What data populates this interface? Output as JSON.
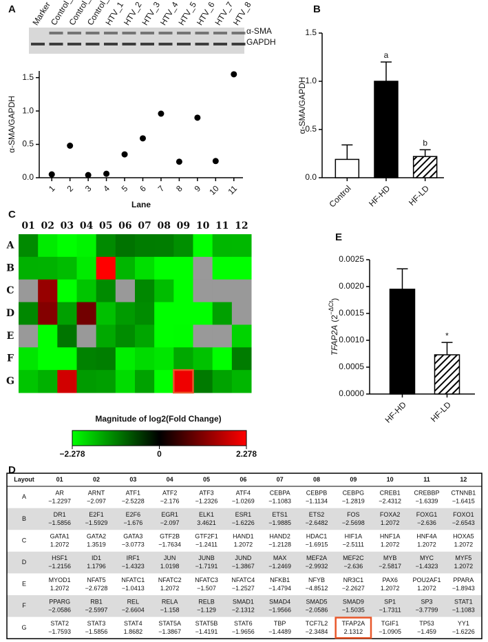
{
  "panel_labels": [
    "A",
    "B",
    "C",
    "D",
    "E"
  ],
  "blot": {
    "lanes": [
      "Marker",
      "Control_1",
      "Control_2",
      "Control_3",
      "HTV_1",
      "HTV_2",
      "HTV_3",
      "HTV_4",
      "HTV_5",
      "HTV_6",
      "HTV_7",
      "HTV_8"
    ],
    "lane_colors": [
      "#000000",
      "#000000",
      "#000000",
      "#000000",
      "#e00000",
      "#e00000",
      "#000000",
      "#000000",
      "#e00000",
      "#000000",
      "#e00000",
      "#000000"
    ],
    "bands": [
      "α-SMA",
      "GAPDH"
    ]
  },
  "chart_data": [
    {
      "type": "scatter",
      "ylabel": "α-SMA/GAPDH",
      "xlabel": "Lane",
      "color": "#000000",
      "x": [
        1,
        2,
        3,
        4,
        5,
        6,
        7,
        8,
        9,
        10,
        11
      ],
      "values": [
        0.05,
        0.48,
        0.04,
        0.06,
        0.35,
        0.59,
        0.96,
        0.24,
        0.9,
        0.25,
        1.55
      ],
      "xlim": [
        0.5,
        11.5
      ],
      "xticks": [
        1,
        2,
        3,
        4,
        5,
        6,
        7,
        8,
        9,
        10,
        11
      ],
      "ylim": [
        0,
        1.6
      ],
      "yticks": [
        {
          "value": 0,
          "label": "0.0"
        },
        {
          "value": 0.5,
          "label": "0.5"
        },
        {
          "value": 1,
          "label": "1.0"
        },
        {
          "value": 1.5,
          "label": "1.5"
        }
      ]
    },
    {
      "type": "bar",
      "ylabel": "α-SMA/GAPDH",
      "categories": [
        "Control",
        "HF-HD",
        "HF-LD"
      ],
      "values": [
        0.19,
        1.0,
        0.22
      ],
      "errors": [
        0.15,
        0.2,
        0.07
      ],
      "fills": [
        "#ffffff",
        "#000000",
        "hatch"
      ],
      "annotations": [
        {
          "category": "HF-HD",
          "text": "a"
        },
        {
          "category": "HF-LD",
          "text": "b"
        }
      ],
      "ylim": [
        0,
        1.5
      ],
      "yticks": [
        {
          "value": 0,
          "label": "0.0"
        },
        {
          "value": 0.5,
          "label": "0.5"
        },
        {
          "value": 1,
          "label": "1.0"
        },
        {
          "value": 1.5,
          "label": "1.5"
        }
      ]
    },
    {
      "type": "heatmap",
      "title": "Magnitude of log2(Fold Change)",
      "columns": [
        "01",
        "02",
        "03",
        "04",
        "05",
        "06",
        "07",
        "08",
        "09",
        "10",
        "11",
        "12"
      ],
      "rows": [
        "A",
        "B",
        "C",
        "D",
        "E",
        "F",
        "G"
      ],
      "colors": {
        "low": "#00ff00",
        "mid": "#000000",
        "high": "#ff0000",
        "na": "#999999"
      },
      "na_cells": [
        [
          1,
          9
        ],
        [
          2,
          0
        ],
        [
          2,
          5
        ],
        [
          2,
          9
        ],
        [
          2,
          10
        ],
        [
          2,
          11
        ],
        [
          3,
          11
        ],
        [
          4,
          0
        ],
        [
          4,
          3
        ],
        [
          4,
          9
        ],
        [
          4,
          10
        ]
      ],
      "highlight": {
        "row": 6,
        "col": 8,
        "color": "#e8572a"
      },
      "colorbar_ticks": [
        {
          "value": -2.278,
          "label": "−2.278"
        },
        0,
        2.278
      ]
    },
    {
      "type": "bar",
      "ylabel_gene": "TFAP2A",
      "ylabel": "(2",
      "ylabel_sup": "−ΔCt",
      "ylabel_end": ")",
      "categories": [
        "HF-HD",
        "HF-LD"
      ],
      "values": [
        0.00195,
        0.00073
      ],
      "errors": [
        0.00038,
        0.00023
      ],
      "fills": [
        "#000000",
        "hatch"
      ],
      "annotations": [
        {
          "category": "HF-LD",
          "text": "*"
        }
      ],
      "ylim": [
        0,
        0.0025
      ],
      "yticks": [
        {
          "value": 0,
          "label": "0.0000"
        },
        {
          "value": 0.0005,
          "label": "0.0005"
        },
        {
          "value": 0.001,
          "label": "0.0010"
        },
        {
          "value": 0.0015,
          "label": "0.0015"
        },
        {
          "value": 0.002,
          "label": "0.0020"
        },
        {
          "value": 0.0025,
          "label": "0.0025"
        }
      ]
    }
  ],
  "table": {
    "columns": [
      "Layout",
      "01",
      "02",
      "03",
      "04",
      "05",
      "06",
      "07",
      "08",
      "09",
      "10",
      "11",
      "12"
    ],
    "highlight": {
      "row": 6,
      "col": 8,
      "color": "#e8572a"
    },
    "rows": [
      {
        "label": "A",
        "cells": [
          [
            "AR",
            "−1.2297"
          ],
          [
            "ARNT",
            "−2.097"
          ],
          [
            "ATF1",
            "−2.5228"
          ],
          [
            "ATF2",
            "−2.176"
          ],
          [
            "ATF3",
            "−1.2326"
          ],
          [
            "ATF4",
            "−1.0269"
          ],
          [
            "CEBPA",
            "−1.1083"
          ],
          [
            "CEBPB",
            "−1.1134"
          ],
          [
            "CEBPG",
            "−1.2819"
          ],
          [
            "CREB1",
            "−2.4312"
          ],
          [
            "CREBBP",
            "−1.6339"
          ],
          [
            "CTNNB1",
            "−1.6415"
          ]
        ]
      },
      {
        "label": "B",
        "cells": [
          [
            "DR1",
            "−1.5856"
          ],
          [
            "E2F1",
            "−1.5929"
          ],
          [
            "E2F6",
            "−1.676"
          ],
          [
            "EGR1",
            "−2.097"
          ],
          [
            "ELK1",
            "3.4621"
          ],
          [
            "ESR1",
            "−1.6226"
          ],
          [
            "ETS1",
            "−1.9885"
          ],
          [
            "ETS2",
            "−2.6482"
          ],
          [
            "FOS",
            "−2.5698"
          ],
          [
            "FOXA2",
            "1.2072"
          ],
          [
            "FOXG1",
            "−2.636"
          ],
          [
            "FOXO1",
            "−2.6543"
          ]
        ]
      },
      {
        "label": "C",
        "cells": [
          [
            "GATA1",
            "1.2072"
          ],
          [
            "GATA2",
            "1.3519"
          ],
          [
            "GATA3",
            "−3.0773"
          ],
          [
            "GTF2B",
            "−1.7634"
          ],
          [
            "GTF2F1",
            "−1.2411"
          ],
          [
            "HAND1",
            "1.2072"
          ],
          [
            "HAND2",
            "−1.2128"
          ],
          [
            "HDAC1",
            "−1.6915"
          ],
          [
            "HIF1A",
            "−2.5111"
          ],
          [
            "HNF1A",
            "1.2072"
          ],
          [
            "HNF4A",
            "1.2072"
          ],
          [
            "HOXA5",
            "1.2072"
          ]
        ]
      },
      {
        "label": "D",
        "cells": [
          [
            "HSF1",
            "−1.2156"
          ],
          [
            "ID1",
            "1.1796"
          ],
          [
            "IRF1",
            "−1.4323"
          ],
          [
            "JUN",
            "1.0198"
          ],
          [
            "JUNB",
            "−1.7191"
          ],
          [
            "JUND",
            "−1.3867"
          ],
          [
            "MAX",
            "−1.2469"
          ],
          [
            "MEF2A",
            "−2.9932"
          ],
          [
            "MEF2C",
            "−2.636"
          ],
          [
            "MYB",
            "−2.5817"
          ],
          [
            "MYC",
            "−1.4323"
          ],
          [
            "MYF5",
            "1.2072"
          ]
        ]
      },
      {
        "label": "E",
        "cells": [
          [
            "MYOD1",
            "1.2072"
          ],
          [
            "NFAT5",
            "−2.6728"
          ],
          [
            "NFATC1",
            "−1.0413"
          ],
          [
            "NFATC2",
            "1.2072"
          ],
          [
            "NFATC3",
            "−1.507"
          ],
          [
            "NFATC4",
            "−1.2527"
          ],
          [
            "NFKB1",
            "−1.4794"
          ],
          [
            "NFYB",
            "−4.8512"
          ],
          [
            "NR3C1",
            "−2.2627"
          ],
          [
            "PAX6",
            "1.2072"
          ],
          [
            "POU2AF1",
            "1.2072"
          ],
          [
            "PPARA",
            "−1.8943"
          ]
        ]
      },
      {
        "label": "F",
        "cells": [
          [
            "PPARG",
            "−2.0586"
          ],
          [
            "RB1",
            "−2.5997"
          ],
          [
            "REL",
            "−2.6604"
          ],
          [
            "RELA",
            "−1.158"
          ],
          [
            "RELB",
            "−1.129"
          ],
          [
            "SMAD1",
            "−2.1312"
          ],
          [
            "SMAD4",
            "−1.9566"
          ],
          [
            "SMAD5",
            "−2.0586"
          ],
          [
            "SMAD9",
            "−1.5035"
          ],
          [
            "SP1",
            "−1.7311"
          ],
          [
            "SP3",
            "−3.7799"
          ],
          [
            "STAT1",
            "−1.1083"
          ]
        ]
      },
      {
        "label": "G",
        "cells": [
          [
            "STAT2",
            "−1.7593"
          ],
          [
            "STAT3",
            "−1.5856"
          ],
          [
            "STAT4",
            "1.8682"
          ],
          [
            "STAT5A",
            "−1.3867"
          ],
          [
            "STAT5B",
            "−1.4191"
          ],
          [
            "STAT6",
            "−1.9656"
          ],
          [
            "TBP",
            "−1.4489"
          ],
          [
            "TCF7L2",
            "−2.3484"
          ],
          [
            "TFAP2A",
            "2.1312"
          ],
          [
            "TGIF1",
            "−1.0905"
          ],
          [
            "TP53",
            "−1.459"
          ],
          [
            "YY1",
            "−1.6226"
          ]
        ]
      }
    ]
  }
}
